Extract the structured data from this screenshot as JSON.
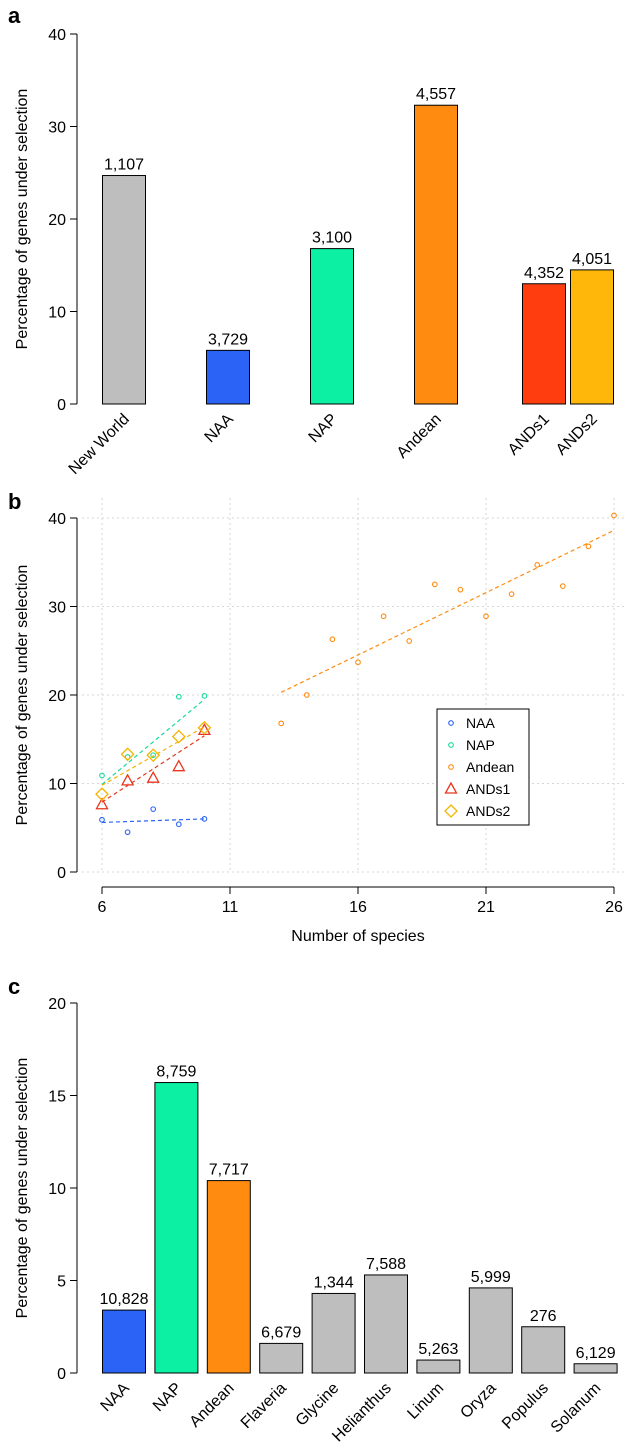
{
  "panels": [
    {
      "label": "a"
    },
    {
      "label": "b"
    },
    {
      "label": "c"
    }
  ],
  "chart_data": [
    {
      "type": "bar",
      "panel": "a",
      "title": "",
      "ylabel": "Percentage of genes under selection",
      "xlabel": "",
      "ylim": [
        0,
        40
      ],
      "yticks": [
        0,
        10,
        20,
        30,
        40
      ],
      "categories": [
        "New World",
        "NAA",
        "NAP",
        "Andean",
        "ANDs1",
        "ANDs2"
      ],
      "values": [
        24.7,
        5.8,
        16.8,
        32.3,
        13.0,
        14.5
      ],
      "data_labels": [
        "1,107",
        "3,729",
        "3,100",
        "4,557",
        "4,352",
        "4,051"
      ],
      "colors": [
        "#bebebe",
        "#2a63f5",
        "#0cf0a3",
        "#ff8c10",
        "#ff3d0e",
        "#ffb80a"
      ]
    },
    {
      "type": "scatter",
      "panel": "b",
      "title": "",
      "xlabel": "Number of species",
      "ylabel": "Percentage of genes under selection",
      "xlim": [
        6,
        26
      ],
      "ylim": [
        0,
        40
      ],
      "xticks": [
        6,
        11,
        16,
        21,
        26
      ],
      "yticks": [
        0,
        10,
        20,
        30,
        40
      ],
      "grid": true,
      "legend_position": "center-right",
      "series": [
        {
          "name": "NAA",
          "marker": "circle",
          "color": "#2a63f5",
          "x": [
            6,
            7,
            8,
            9,
            10
          ],
          "y": [
            5.9,
            4.5,
            7.1,
            5.4,
            6.0
          ],
          "trend": [
            [
              6,
              5.6
            ],
            [
              10,
              6.0
            ]
          ]
        },
        {
          "name": "NAP",
          "marker": "circle",
          "color": "#17d9a0",
          "x": [
            6,
            7,
            8,
            9,
            10
          ],
          "y": [
            10.9,
            13.0,
            13.2,
            19.8,
            19.9
          ],
          "trend": [
            [
              6,
              9.9
            ],
            [
              10,
              19.5
            ]
          ]
        },
        {
          "name": "Andean",
          "marker": "circle",
          "color": "#ff8c10",
          "x": [
            13,
            14,
            15,
            16,
            17,
            18,
            19,
            20,
            21,
            22,
            23,
            24,
            25,
            26
          ],
          "y": [
            16.8,
            20.0,
            26.3,
            23.7,
            28.9,
            26.1,
            32.5,
            31.9,
            28.9,
            31.4,
            34.7,
            32.3,
            36.8,
            40.3
          ],
          "trend": [
            [
              13,
              20.3
            ],
            [
              26,
              38.6
            ]
          ]
        },
        {
          "name": "ANDs1",
          "marker": "triangle",
          "color": "#e8361d",
          "x": [
            6,
            7,
            8,
            9,
            10
          ],
          "y": [
            7.6,
            10.3,
            10.6,
            11.9,
            16.0
          ],
          "trend": [
            [
              6,
              7.9
            ],
            [
              10,
              15.4
            ]
          ]
        },
        {
          "name": "ANDs2",
          "marker": "diamond",
          "color": "#f5b400",
          "x": [
            6,
            7,
            8,
            9,
            10
          ],
          "y": [
            8.8,
            13.3,
            13.2,
            15.3,
            16.3
          ],
          "trend": [
            [
              6,
              9.8
            ],
            [
              10,
              16.4
            ]
          ]
        }
      ]
    },
    {
      "type": "bar",
      "panel": "c",
      "title": "",
      "ylabel": "Percentage of genes under selection",
      "xlabel": "",
      "ylim": [
        0,
        20
      ],
      "yticks": [
        0,
        5,
        10,
        15,
        20
      ],
      "categories": [
        "NAA",
        "NAP",
        "Andean",
        "Flaveria",
        "Glycine",
        "Helianthus",
        "Linum",
        "Oryza",
        "Populus",
        "Solanum"
      ],
      "values": [
        3.4,
        15.7,
        10.4,
        1.6,
        4.3,
        5.3,
        0.7,
        4.6,
        2.5,
        0.5
      ],
      "data_labels": [
        "10,828",
        "8,759",
        "7,717",
        "6,679",
        "1,344",
        "7,588",
        "5,263",
        "5,999",
        "276",
        "6,129"
      ],
      "colors": [
        "#2a63f5",
        "#0cf0a3",
        "#ff8c10",
        "#bebebe",
        "#bebebe",
        "#bebebe",
        "#bebebe",
        "#bebebe",
        "#bebebe",
        "#bebebe"
      ]
    }
  ]
}
